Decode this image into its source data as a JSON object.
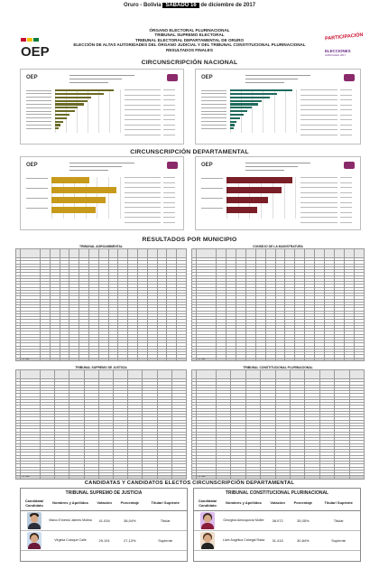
{
  "header": {
    "place": "Oruro - Bolivia",
    "day": "SÁBADO 16",
    "date_rest": "de diciembre de 2017",
    "lines": [
      "ÓRGANO ELECTORAL PLURINACIONAL",
      "TRIBUNAL SUPREMO ELECTORAL",
      "TRIBUNAL ELECTORAL DEPARTAMENTAL DE ORURO",
      "ELECCIÓN DE ALTAS AUTORIDADES DEL ÓRGANO JUDICIAL Y DEL TRIBUNAL CONSTITUCIONAL PLURINACIONAL",
      "RESULTADOS FINALES"
    ],
    "logo_left": "OEP",
    "logo_right_1": "PARTICIPACIÓN",
    "logo_right_2": "ELECCIONES",
    "logo_right_3": "JUDICIALES 2017"
  },
  "sections": {
    "nacional": "CIRCUNSCRIPCIÓN NACIONAL",
    "departamental": "CIRCUNSCRIPCIÓN DEPARTAMENTAL",
    "municipio": "RESULTADOS POR MUNICIPIO",
    "candidatos": "CANDIDATAS Y CANDIDATOS ELECTOS CIRCUNSCRIPCIÓN DEPARTAMENTAL"
  },
  "charts": {
    "nac_left_title": "Elección de Altas Autoridades del Órgano Judicial y del Tribunal",
    "nac_left_sub": "Consejo Nacional",
    "dep_left_title": "Elección de Altas Autoridades del Órgano Judicial y del Tribunal",
    "dep_left_sub": "Tribunal Supremo",
    "mini_logo": "OEP"
  },
  "tables": {
    "t1_title": "TRIBUNAL AGROAMBIENTAL",
    "t2_title": "CONSEJO DE LA MAGISTRATURA",
    "t3_title": "TRIBUNAL SUPREMO DE JUSTICIA",
    "t4_title": "TRIBUNAL CONSTITUCIONAL PLURINACIONAL",
    "cols_head": [
      "Nº",
      "Provincia",
      "Municipio",
      "Inscritos",
      "Votos emitidos",
      "Votos válidos",
      "Blancos",
      "Nulos"
    ],
    "total_label": "T O T A L"
  },
  "candidates": {
    "tsj_title": "TRIBUNAL SUPREMO DE JUSTICIA",
    "tcp_title": "TRIBUNAL CONSTITUCIONAL PLURINACIONAL",
    "head_cand": "Candidata/ Candidato",
    "head_name": "Nombres y Apellidos",
    "head_vote": "Votación",
    "head_pct": "Porcentaje",
    "head_role": "Titular/ Suplente",
    "tsj": [
      {
        "name": "Marco Ernesto Jaimes Molina",
        "votes": "41.034",
        "pct": "38,04%",
        "role": "Titular"
      },
      {
        "name": "Virginia Coloque Calle",
        "votes": "29.191",
        "pct": "27,13%",
        "role": "Suplente"
      }
    ],
    "tcp": [
      {
        "name": "Georgina Amusquivar Moller",
        "votes": "38.072",
        "pct": "35,05%",
        "role": "Titular"
      },
      {
        "name": "Lizet Angélica Canegal Rada",
        "votes": "31.415",
        "pct": "30,84%",
        "role": "Suplente"
      }
    ]
  },
  "colors": {
    "olive": "#6b6a25",
    "teal": "#1f6b5d",
    "gold": "#c89a1b",
    "maroon": "#7a1e27"
  }
}
